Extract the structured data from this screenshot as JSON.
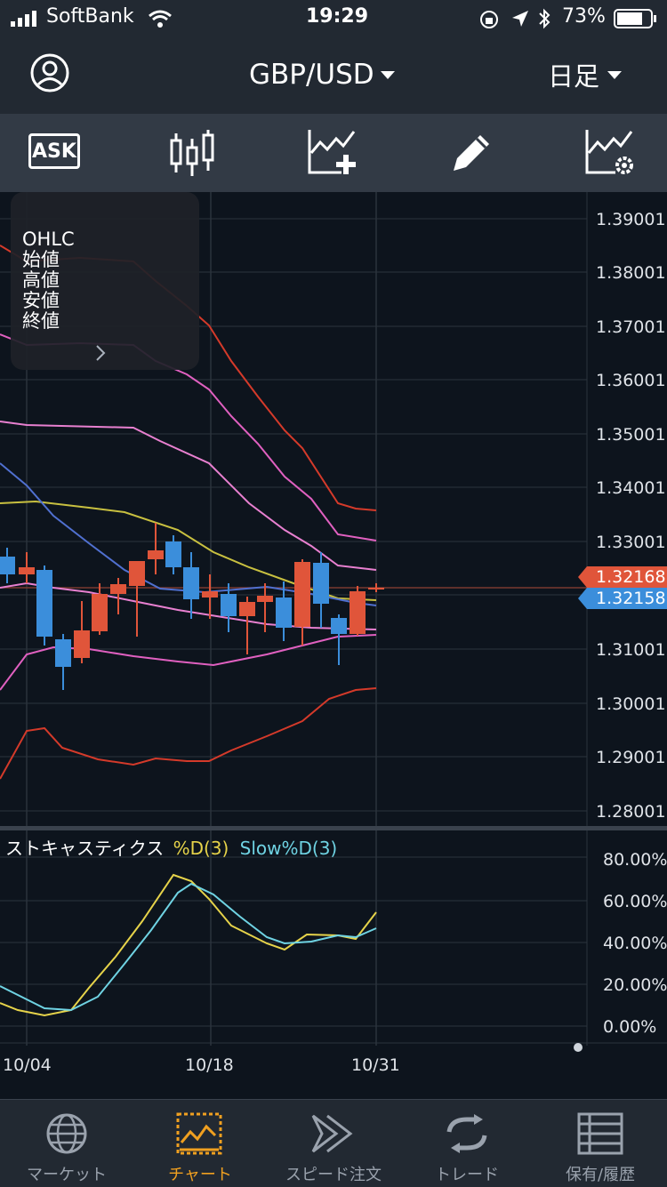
{
  "status": {
    "carrier": "SoftBank",
    "time": "19:29",
    "battery": "73%"
  },
  "header": {
    "pair": "GBP/USD",
    "timeframe": "日足"
  },
  "toolbar": {
    "ask_label": "ASK"
  },
  "ohlc_panel": {
    "title": "OHLC",
    "open": "始値",
    "high": "高値",
    "low": "安値",
    "close": "終値"
  },
  "chart": {
    "price_axis": [
      "1.39001",
      "1.38001",
      "1.37001",
      "1.36001",
      "1.35001",
      "1.34001",
      "1.33001",
      "1.31001",
      "1.30001",
      "1.29001",
      "1.28001"
    ],
    "ask_price": "1.32168",
    "bid_price": "1.32158",
    "dates": [
      "10/04",
      "10/18",
      "10/31"
    ]
  },
  "stochastic": {
    "label": "ストキャスティクス",
    "series1": "%D(3)",
    "series2": "Slow%D(3)",
    "axis": [
      "80.00%",
      "60.00%",
      "40.00%",
      "20.00%",
      "0.00%"
    ]
  },
  "tabs": [
    "マーケット",
    "チャート",
    "スピード注文",
    "トレード",
    "保有/履歴"
  ],
  "colors": {
    "ask": "#e0553a",
    "bid": "#3b8edb",
    "accent": "#f0a020",
    "bull": "#e0553a",
    "bear": "#3b8edb"
  }
}
